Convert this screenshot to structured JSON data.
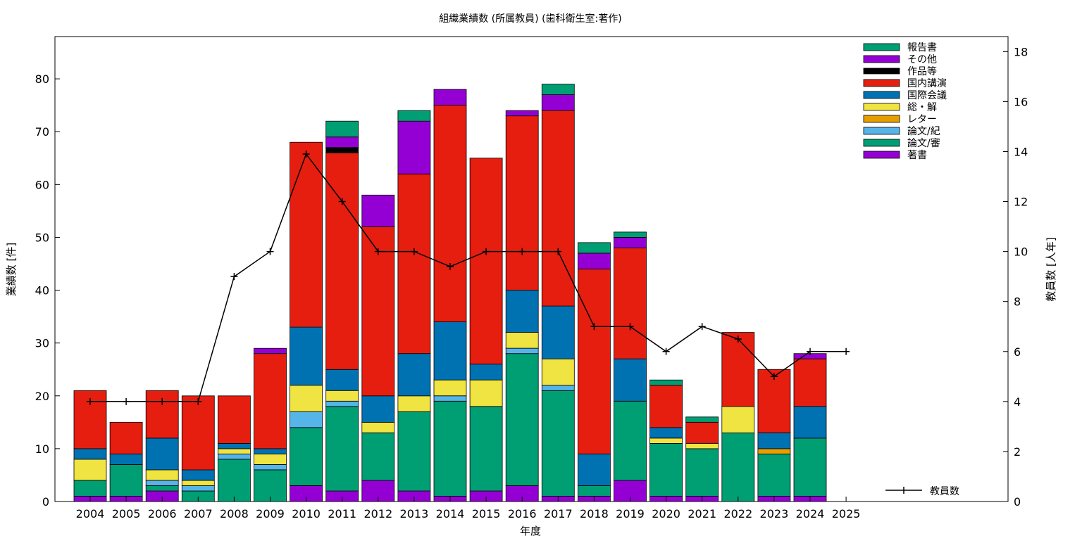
{
  "chart_data": {
    "type": "bar",
    "title": "組織業績数 (所属教員) (歯科衛生室:著作)",
    "xlabel": "年度",
    "ylabel": "業績数 [件]",
    "y2label": "教員数 [人年]",
    "ylim": [
      0,
      88
    ],
    "y2lim": [
      0,
      18.6
    ],
    "yticks": [
      "0",
      "10",
      "20",
      "30",
      "40",
      "50",
      "60",
      "70",
      "80"
    ],
    "y2ticks": [
      "0",
      "2",
      "4",
      "6",
      "8",
      "10",
      "12",
      "14",
      "16",
      "18"
    ],
    "grid": false,
    "legend_position": "top-right",
    "categories": [
      "2004",
      "2005",
      "2006",
      "2007",
      "2008",
      "2009",
      "2010",
      "2011",
      "2012",
      "2013",
      "2014",
      "2015",
      "2016",
      "2017",
      "2018",
      "2019",
      "2020",
      "2021",
      "2022",
      "2023",
      "2024",
      "2025"
    ],
    "series": [
      {
        "name": "著書",
        "color": "#9400d3",
        "values": [
          1,
          1,
          2,
          0,
          0,
          0,
          3,
          2,
          4,
          2,
          1,
          2,
          3,
          1,
          1,
          4,
          1,
          1,
          0,
          1,
          1,
          0
        ]
      },
      {
        "name": "論文/審",
        "color": "#009e73",
        "values": [
          3,
          6,
          1,
          2,
          8,
          6,
          11,
          16,
          9,
          15,
          18,
          16,
          25,
          20,
          2,
          15,
          10,
          9,
          13,
          8,
          11,
          0
        ]
      },
      {
        "name": "論文/紀",
        "color": "#56b4e9",
        "values": [
          0,
          0,
          1,
          1,
          1,
          1,
          3,
          1,
          0,
          0,
          1,
          0,
          1,
          1,
          0,
          0,
          0,
          0,
          0,
          0,
          0,
          0
        ]
      },
      {
        "name": "レター",
        "color": "#e69f00",
        "values": [
          0,
          0,
          0,
          0,
          0,
          0,
          0,
          0,
          0,
          0,
          0,
          0,
          0,
          0,
          0,
          0,
          0,
          0,
          0,
          1,
          0,
          0
        ]
      },
      {
        "name": "総・解",
        "color": "#f0e442",
        "values": [
          4,
          0,
          2,
          1,
          1,
          2,
          5,
          2,
          2,
          3,
          3,
          5,
          3,
          5,
          0,
          0,
          1,
          1,
          5,
          0,
          0,
          0
        ]
      },
      {
        "name": "国際会議",
        "color": "#0072b2",
        "values": [
          2,
          2,
          6,
          2,
          1,
          1,
          11,
          4,
          5,
          8,
          11,
          3,
          8,
          10,
          6,
          8,
          2,
          0,
          0,
          3,
          6,
          0
        ]
      },
      {
        "name": "国内講演",
        "color": "#e51e10",
        "values": [
          11,
          6,
          9,
          14,
          9,
          18,
          35,
          41,
          32,
          34,
          41,
          39,
          33,
          37,
          35,
          21,
          8,
          4,
          14,
          12,
          9,
          0
        ]
      },
      {
        "name": "作品等",
        "color": "#000000",
        "values": [
          0,
          0,
          0,
          0,
          0,
          0,
          0,
          1,
          0,
          0,
          0,
          0,
          0,
          0,
          0,
          0,
          0,
          0,
          0,
          0,
          0,
          0
        ]
      },
      {
        "name": "その他",
        "color": "#9400d3",
        "values": [
          0,
          0,
          0,
          0,
          0,
          1,
          0,
          2,
          6,
          10,
          3,
          0,
          1,
          3,
          3,
          2,
          0,
          0,
          0,
          0,
          1,
          0
        ]
      },
      {
        "name": "報告書",
        "color": "#009e73",
        "values": [
          0,
          0,
          0,
          0,
          0,
          0,
          0,
          3,
          0,
          2,
          0,
          0,
          0,
          2,
          2,
          1,
          1,
          1,
          0,
          0,
          0,
          0
        ]
      }
    ],
    "line_series": {
      "name": "教員数",
      "color": "#000000",
      "values": [
        4,
        4,
        4,
        4,
        9,
        10,
        13.9,
        12,
        10,
        10,
        9.4,
        10,
        10,
        10,
        7,
        7,
        6,
        7,
        6.5,
        5,
        6,
        6
      ]
    }
  }
}
